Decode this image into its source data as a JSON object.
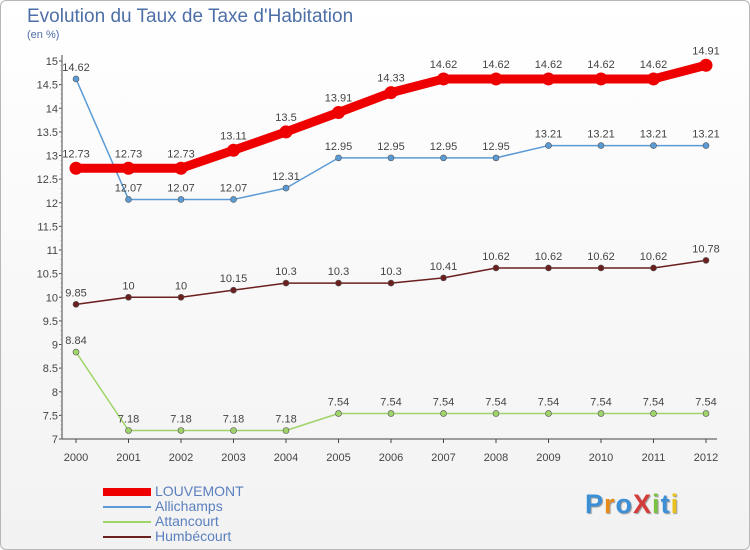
{
  "title": "Evolution du Taux de Taxe d'Habitation",
  "unit": "(en %)",
  "logo": {
    "text": "ProXiti",
    "colors": [
      "#3b8fd6",
      "#e88a1a",
      "#3b8fd6",
      "#d63b3b",
      "#7cc242",
      "#3b8fd6",
      "#e8c21a"
    ]
  },
  "chart_data": {
    "type": "line",
    "x": [
      "2000",
      "2001",
      "2002",
      "2003",
      "2004",
      "2005",
      "2006",
      "2007",
      "2008",
      "2009",
      "2010",
      "2011",
      "2012"
    ],
    "ylim": [
      7,
      15
    ],
    "yticks": [
      "7",
      "7.5",
      "8",
      "8.5",
      "9",
      "9.5",
      "10",
      "10.5",
      "11",
      "11.5",
      "12",
      "12.5",
      "13",
      "13.5",
      "14",
      "14.5",
      "15"
    ],
    "grid": false,
    "legend_position": "bottom-left",
    "series": [
      {
        "name": "LOUVEMONT",
        "color": "#ee0000",
        "emphasis": true,
        "values": [
          12.73,
          12.73,
          12.73,
          13.11,
          13.5,
          13.91,
          14.33,
          14.62,
          14.62,
          14.62,
          14.62,
          14.62,
          14.91
        ],
        "labels": [
          "12.73",
          "12.73",
          "12.73",
          "13.11",
          "13.5",
          "13.91",
          "14.33",
          "14.62",
          "14.62",
          "14.62",
          "14.62",
          "14.62",
          "14.91"
        ]
      },
      {
        "name": "Allichamps",
        "color": "#5b9bd5",
        "values": [
          14.62,
          12.07,
          12.07,
          12.07,
          12.31,
          12.95,
          12.95,
          12.95,
          12.95,
          13.21,
          13.21,
          13.21,
          13.21
        ],
        "labels": [
          "14.62",
          "12.07",
          "12.07",
          "12.07",
          "12.31",
          "12.95",
          "12.95",
          "12.95",
          "12.95",
          "13.21",
          "13.21",
          "13.21",
          "13.21"
        ]
      },
      {
        "name": "Attancourt",
        "color": "#9ed46a",
        "values": [
          8.84,
          7.18,
          7.18,
          7.18,
          7.18,
          7.54,
          7.54,
          7.54,
          7.54,
          7.54,
          7.54,
          7.54,
          7.54
        ],
        "labels": [
          "8.84",
          "7.18",
          "7.18",
          "7.18",
          "7.18",
          "7.54",
          "7.54",
          "7.54",
          "7.54",
          "7.54",
          "7.54",
          "7.54",
          "7.54"
        ]
      },
      {
        "name": "Humbécourt",
        "color": "#6b1f1f",
        "values": [
          9.85,
          10,
          10,
          10.15,
          10.3,
          10.3,
          10.3,
          10.41,
          10.62,
          10.62,
          10.62,
          10.62,
          10.78
        ],
        "labels": [
          "9.85",
          "10",
          "10",
          "10.15",
          "10.3",
          "10.3",
          "10.3",
          "10.41",
          "10.62",
          "10.62",
          "10.62",
          "10.62",
          "10.78"
        ]
      }
    ]
  }
}
